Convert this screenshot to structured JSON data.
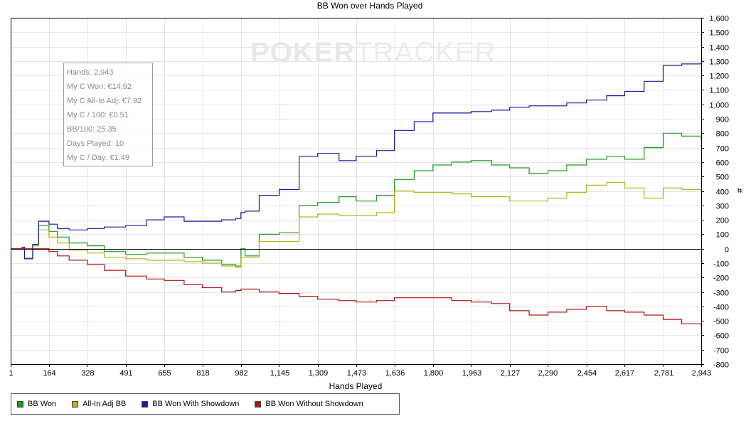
{
  "chart_data": {
    "type": "line",
    "title": "BB Won over Hands Played",
    "xlabel": "Hands Played",
    "ylabel": "#",
    "xlim": [
      1,
      2943
    ],
    "ylim": [
      -800,
      1600
    ],
    "x_ticks": [
      "1",
      "164",
      "328",
      "491",
      "655",
      "818",
      "982",
      "1,145",
      "1,309",
      "1,473",
      "1,636",
      "1,800",
      "1,963",
      "2,127",
      "2,290",
      "2,454",
      "2,617",
      "2,781",
      "2,943"
    ],
    "y_ticks": [
      "1,600",
      "1,500",
      "1,400",
      "1,300",
      "1,200",
      "1,100",
      "1,000",
      "900",
      "800",
      "700",
      "600",
      "500",
      "400",
      "300",
      "200",
      "100",
      "0",
      "-100",
      "-200",
      "-300",
      "-400",
      "-500",
      "-600",
      "-700",
      "-800"
    ],
    "grid": true,
    "legend_position": "bottom-left",
    "x": [
      1,
      50,
      60,
      95,
      120,
      164,
      200,
      250,
      328,
      400,
      491,
      580,
      655,
      740,
      818,
      900,
      960,
      982,
      1000,
      1060,
      1145,
      1230,
      1309,
      1400,
      1473,
      1560,
      1636,
      1720,
      1800,
      1880,
      1963,
      2050,
      2127,
      2210,
      2290,
      2370,
      2454,
      2540,
      2617,
      2700,
      2781,
      2860,
      2943
    ],
    "series": [
      {
        "name": "BB Won",
        "color": "#1f9a1f",
        "values": [
          0,
          10,
          -70,
          30,
          160,
          120,
          80,
          40,
          20,
          -20,
          -40,
          -30,
          -30,
          -60,
          -80,
          -110,
          -120,
          0,
          -50,
          100,
          110,
          300,
          320,
          360,
          330,
          370,
          480,
          540,
          580,
          600,
          610,
          580,
          560,
          520,
          540,
          580,
          620,
          640,
          620,
          700,
          800,
          780,
          750
        ]
      },
      {
        "name": "All-In Adj BB",
        "color": "#b8b21c",
        "values": [
          0,
          5,
          -60,
          20,
          130,
          80,
          40,
          -10,
          -30,
          -60,
          -70,
          -80,
          -80,
          -90,
          -100,
          -120,
          -130,
          -60,
          -60,
          50,
          50,
          220,
          240,
          230,
          230,
          250,
          400,
          390,
          390,
          380,
          360,
          360,
          330,
          330,
          350,
          390,
          440,
          460,
          420,
          350,
          420,
          410,
          400
        ]
      },
      {
        "name": "BB Won With Showdown",
        "color": "#1a1aa6",
        "values": [
          0,
          10,
          -70,
          30,
          190,
          170,
          140,
          130,
          140,
          150,
          160,
          200,
          220,
          190,
          190,
          200,
          210,
          250,
          260,
          370,
          410,
          640,
          660,
          610,
          640,
          680,
          820,
          880,
          940,
          940,
          950,
          960,
          980,
          990,
          990,
          1010,
          1030,
          1060,
          1090,
          1160,
          1270,
          1280,
          1290
        ]
      },
      {
        "name": "BB Won Without Showdown",
        "color": "#b01414",
        "values": [
          0,
          0,
          0,
          0,
          0,
          -20,
          -50,
          -80,
          -110,
          -150,
          -190,
          -210,
          -220,
          -250,
          -270,
          -300,
          -290,
          -280,
          -280,
          -300,
          -310,
          -330,
          -350,
          -360,
          -370,
          -360,
          -340,
          -340,
          -340,
          -360,
          -370,
          -380,
          -430,
          -460,
          -440,
          -420,
          -400,
          -430,
          -440,
          -460,
          -490,
          -520,
          -540
        ]
      }
    ]
  },
  "stats": [
    "Hands: 2,943",
    "My C Won: €14.92",
    "My C All-In Adj: €7.92",
    "My C / 100: €0.51",
    "BB/100: 25.35",
    "Days Played: 10",
    "My C / Day: €1.49"
  ],
  "watermark": {
    "part1": "POKER",
    "part2": "TRACKER"
  }
}
